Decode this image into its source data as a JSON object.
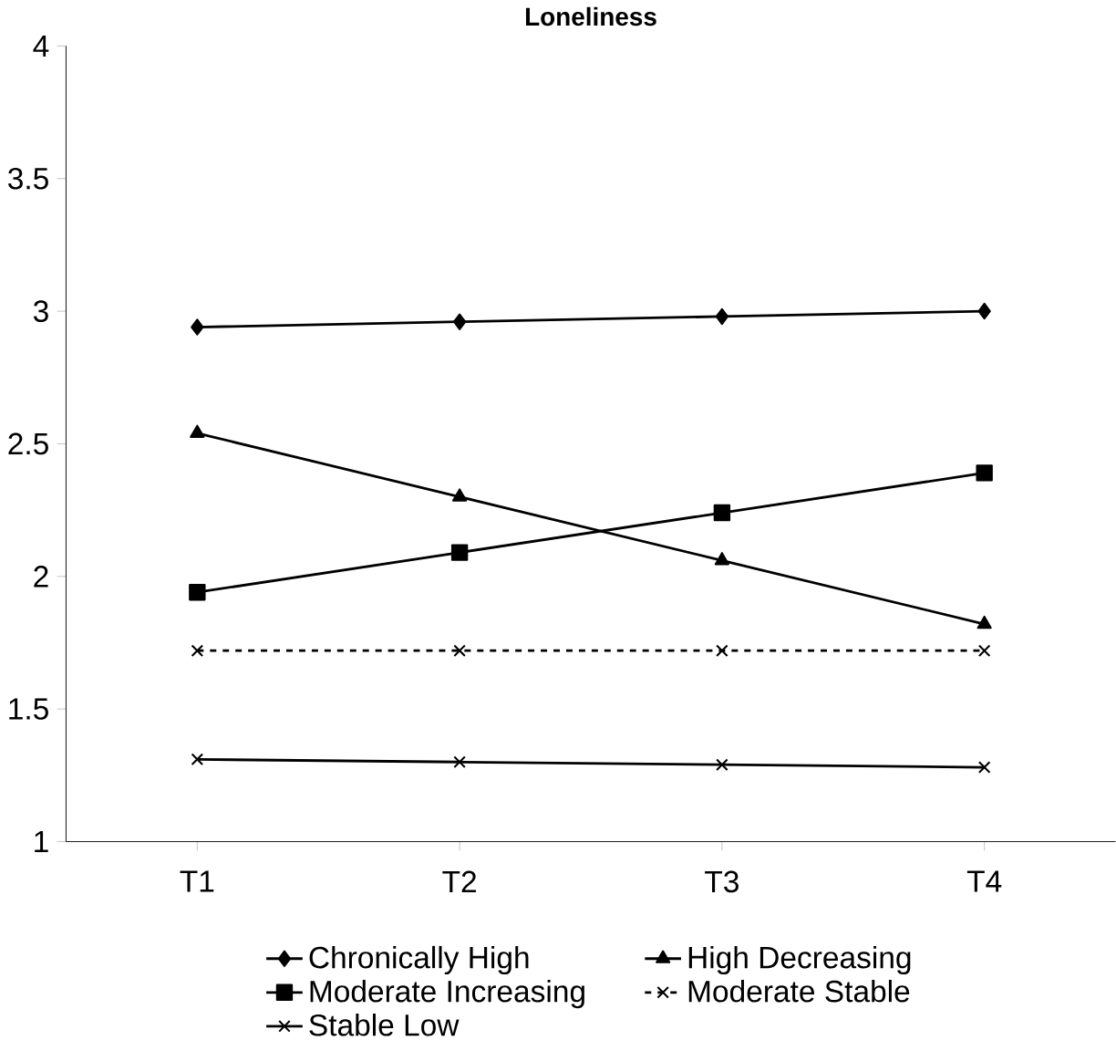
{
  "chart_data": {
    "type": "line",
    "title": "Loneliness",
    "categories": [
      "T1",
      "T2",
      "T3",
      "T4"
    ],
    "ylim": [
      1,
      4
    ],
    "yticks": [
      1,
      1.5,
      2,
      2.5,
      3,
      3.5,
      4
    ],
    "legend": "bottom",
    "grid": false,
    "series": [
      {
        "name": "Chronically High",
        "color": "#000000",
        "marker": "diamond",
        "line_style": "solid",
        "values": [
          2.94,
          2.96,
          2.98,
          3.0
        ]
      },
      {
        "name": "High Decreasing",
        "color": "#000000",
        "marker": "triangle",
        "line_style": "solid",
        "values": [
          2.54,
          2.3,
          2.06,
          1.82
        ]
      },
      {
        "name": "Moderate Increasing",
        "color": "#000000",
        "marker": "square",
        "line_style": "solid",
        "values": [
          1.94,
          2.09,
          2.24,
          2.39
        ]
      },
      {
        "name": "Moderate Stable",
        "color": "#000000",
        "marker": "cross",
        "line_style": "dashed",
        "values": [
          1.72,
          1.72,
          1.72,
          1.72
        ]
      },
      {
        "name": "Stable Low",
        "color": "#000000",
        "marker": "cross",
        "line_style": "solid",
        "values": [
          1.31,
          1.3,
          1.29,
          1.28
        ]
      }
    ]
  }
}
